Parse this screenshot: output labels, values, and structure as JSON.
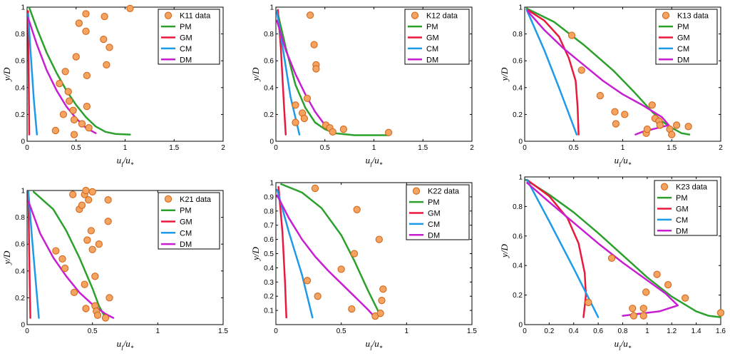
{
  "figure": {
    "title": "Velocity profiles u_l/u_* vs y/D for six data sets"
  },
  "colors": {
    "data": "#F4A460",
    "dataEdge": "#D2691E",
    "PM": "#2CA02C",
    "GM": "#E8193C",
    "CM": "#1E9BE8",
    "DM": "#C81ED2"
  },
  "chart_data": [
    {
      "id": "K11",
      "type": "scatter+line",
      "xlabel": "u_l/u_*",
      "ylabel": "y/D",
      "xlim": [
        0,
        2
      ],
      "ylim": [
        0,
        1
      ],
      "xticks": [
        0,
        0.5,
        1,
        1.5,
        2
      ],
      "xtick_labels": [
        "0",
        "0.5",
        "1",
        "1.5",
        "2"
      ],
      "yticks": [
        0,
        0.2,
        0.4,
        0.6,
        0.8,
        1
      ],
      "ytick_labels": [
        "0",
        "0.2",
        "0.4",
        "0.6",
        "0.8",
        "1"
      ],
      "legend": [
        "K11 data",
        "PM",
        "GM",
        "CM",
        "DM"
      ],
      "points": [
        [
          0.29,
          0.08
        ],
        [
          0.33,
          0.43
        ],
        [
          0.37,
          0.2
        ],
        [
          0.39,
          0.52
        ],
        [
          0.42,
          0.37
        ],
        [
          0.43,
          0.3
        ],
        [
          0.47,
          0.23
        ],
        [
          0.48,
          0.16
        ],
        [
          0.48,
          0.05
        ],
        [
          0.5,
          0.63
        ],
        [
          0.53,
          0.88
        ],
        [
          0.56,
          0.13
        ],
        [
          0.6,
          0.82
        ],
        [
          0.6,
          0.95
        ],
        [
          0.61,
          0.26
        ],
        [
          0.61,
          0.49
        ],
        [
          0.63,
          0.1
        ],
        [
          0.78,
          0.76
        ],
        [
          0.79,
          0.93
        ],
        [
          0.81,
          0.57
        ],
        [
          0.84,
          0.7
        ],
        [
          1.05,
          0.99
        ]
      ],
      "series": [
        {
          "name": "PM",
          "x": [
            0.02,
            0.1,
            0.2,
            0.3,
            0.4,
            0.5,
            0.6,
            0.7,
            0.8,
            0.9,
            1.05
          ],
          "y": [
            1,
            0.84,
            0.66,
            0.51,
            0.38,
            0.27,
            0.18,
            0.11,
            0.07,
            0.055,
            0.05
          ]
        },
        {
          "name": "GM",
          "x": [
            0.01,
            0.016,
            0.02,
            0.022
          ],
          "y": [
            0.97,
            0.5,
            0.2,
            0.05
          ]
        },
        {
          "name": "CM",
          "x": [
            0.01,
            0.04,
            0.07,
            0.1
          ],
          "y": [
            0.95,
            0.62,
            0.3,
            0.05
          ]
        },
        {
          "name": "DM",
          "x": [
            0.01,
            0.1,
            0.2,
            0.3,
            0.4,
            0.5,
            0.6,
            0.7
          ],
          "y": [
            0.92,
            0.72,
            0.53,
            0.38,
            0.26,
            0.17,
            0.1,
            0.06
          ]
        }
      ]
    },
    {
      "id": "K12",
      "type": "scatter+line",
      "xlabel": "u_l/u_*",
      "ylabel": "y/D",
      "xlim": [
        0,
        2
      ],
      "ylim": [
        0,
        1
      ],
      "xticks": [
        0,
        0.5,
        1,
        1.5,
        2
      ],
      "xtick_labels": [
        "0",
        "0.5",
        "1",
        "1.5",
        "2"
      ],
      "yticks": [
        0,
        0.2,
        0.4,
        0.6,
        0.8,
        1
      ],
      "ytick_labels": [
        "0",
        "0.2",
        "0.4",
        "0.6",
        "0.8",
        "1"
      ],
      "legend": [
        "K12 data",
        "PM",
        "GM",
        "CM",
        "DM"
      ],
      "points": [
        [
          0.2,
          0.27
        ],
        [
          0.2,
          0.14
        ],
        [
          0.27,
          0.21
        ],
        [
          0.29,
          0.17
        ],
        [
          0.32,
          0.32
        ],
        [
          0.35,
          0.94
        ],
        [
          0.39,
          0.72
        ],
        [
          0.41,
          0.57
        ],
        [
          0.41,
          0.54
        ],
        [
          0.51,
          0.12
        ],
        [
          0.55,
          0.1
        ],
        [
          0.58,
          0.07
        ],
        [
          0.69,
          0.09
        ],
        [
          1.15,
          0.065
        ]
      ],
      "series": [
        {
          "name": "PM",
          "x": [
            0.02,
            0.1,
            0.2,
            0.3,
            0.4,
            0.5,
            0.6,
            0.8,
            1.0,
            1.15
          ],
          "y": [
            0.95,
            0.7,
            0.42,
            0.25,
            0.14,
            0.09,
            0.06,
            0.045,
            0.045,
            0.045
          ]
        },
        {
          "name": "GM",
          "x": [
            0.02,
            0.05,
            0.08,
            0.1
          ],
          "y": [
            0.98,
            0.7,
            0.3,
            0.05
          ]
        },
        {
          "name": "CM",
          "x": [
            0.01,
            0.08,
            0.15,
            0.24
          ],
          "y": [
            0.97,
            0.65,
            0.33,
            0.05
          ]
        },
        {
          "name": "DM",
          "x": [
            0.01,
            0.1,
            0.2,
            0.3,
            0.4,
            0.5,
            0.6
          ],
          "y": [
            0.9,
            0.68,
            0.5,
            0.35,
            0.22,
            0.12,
            0.06
          ]
        }
      ]
    },
    {
      "id": "K13",
      "type": "scatter+line",
      "xlabel": "u_l/u_*",
      "ylabel": "y/D",
      "xlim": [
        0,
        2
      ],
      "ylim": [
        0,
        1
      ],
      "xticks": [
        0,
        0.5,
        1,
        1.5,
        2
      ],
      "xtick_labels": [
        "0",
        "0.5",
        "1",
        "1.5",
        "2"
      ],
      "yticks": [
        0,
        0.2,
        0.4,
        0.6,
        0.8,
        1
      ],
      "ytick_labels": [
        "0",
        "0.2",
        "0.4",
        "0.6",
        "0.8",
        "1"
      ],
      "legend": [
        "K13 data",
        "PM",
        "GM",
        "CM",
        "DM"
      ],
      "points": [
        [
          0.48,
          0.79
        ],
        [
          0.58,
          0.53
        ],
        [
          0.77,
          0.34
        ],
        [
          0.92,
          0.22
        ],
        [
          0.93,
          0.13
        ],
        [
          1.02,
          0.2
        ],
        [
          1.24,
          0.06
        ],
        [
          1.25,
          0.09
        ],
        [
          1.3,
          0.27
        ],
        [
          1.33,
          0.17
        ],
        [
          1.37,
          0.15
        ],
        [
          1.38,
          0.12
        ],
        [
          1.48,
          0.09
        ],
        [
          1.5,
          0.05
        ],
        [
          1.55,
          0.12
        ],
        [
          1.67,
          0.11
        ]
      ],
      "series": [
        {
          "name": "PM",
          "x": [
            0.02,
            0.3,
            0.6,
            0.9,
            1.1,
            1.3,
            1.4,
            1.5,
            1.6,
            1.68
          ],
          "y": [
            0.99,
            0.89,
            0.72,
            0.53,
            0.38,
            0.22,
            0.15,
            0.1,
            0.06,
            0.05
          ]
        },
        {
          "name": "GM",
          "x": [
            0.03,
            0.2,
            0.35,
            0.45,
            0.52,
            0.54,
            0.55
          ],
          "y": [
            0.98,
            0.9,
            0.78,
            0.62,
            0.45,
            0.25,
            0.05
          ]
        },
        {
          "name": "CM",
          "x": [
            0.02,
            0.2,
            0.35,
            0.53
          ],
          "y": [
            0.98,
            0.68,
            0.4,
            0.05
          ]
        },
        {
          "name": "DM",
          "x": [
            0.03,
            0.2,
            0.4,
            0.6,
            0.8,
            1.0,
            1.2,
            1.4,
            1.47,
            1.2,
            1.13
          ],
          "y": [
            0.97,
            0.83,
            0.69,
            0.57,
            0.45,
            0.35,
            0.27,
            0.18,
            0.12,
            0.07,
            0.05
          ]
        }
      ]
    },
    {
      "id": "K21",
      "type": "scatter+line",
      "xlabel": "u_l/u_*",
      "ylabel": "y/D",
      "xlim": [
        0,
        1.5
      ],
      "ylim": [
        0,
        1
      ],
      "xticks": [
        0,
        0.5,
        1,
        1.5
      ],
      "xtick_labels": [
        "0",
        "0.5",
        "1",
        "1.5"
      ],
      "yticks": [
        0,
        0.2,
        0.4,
        0.6,
        0.8,
        1
      ],
      "ytick_labels": [
        "0",
        "0.2",
        "0.4",
        "0.6",
        "0.8",
        "1"
      ],
      "legend": [
        "K21 data",
        "PM",
        "GM",
        "CM",
        "DM"
      ],
      "points": [
        [
          0.22,
          0.55
        ],
        [
          0.27,
          0.49
        ],
        [
          0.29,
          0.42
        ],
        [
          0.35,
          0.97
        ],
        [
          0.36,
          0.24
        ],
        [
          0.4,
          0.86
        ],
        [
          0.42,
          0.89
        ],
        [
          0.44,
          0.97
        ],
        [
          0.44,
          0.3
        ],
        [
          0.45,
          0.12
        ],
        [
          0.45,
          1.0
        ],
        [
          0.46,
          0.63
        ],
        [
          0.47,
          0.93
        ],
        [
          0.49,
          0.7
        ],
        [
          0.5,
          0.99
        ],
        [
          0.5,
          0.56
        ],
        [
          0.52,
          0.36
        ],
        [
          0.52,
          0.14
        ],
        [
          0.53,
          0.1
        ],
        [
          0.54,
          0.07
        ],
        [
          0.55,
          0.6
        ],
        [
          0.6,
          0.05
        ],
        [
          0.62,
          0.93
        ],
        [
          0.62,
          0.77
        ],
        [
          0.63,
          0.2
        ]
      ],
      "series": [
        {
          "name": "PM",
          "x": [
            0.05,
            0.2,
            0.3,
            0.4,
            0.5,
            0.55,
            0.6
          ],
          "y": [
            0.99,
            0.86,
            0.7,
            0.5,
            0.27,
            0.14,
            0.05
          ]
        },
        {
          "name": "GM",
          "x": [
            0.01,
            0.015,
            0.02,
            0.025
          ],
          "y": [
            0.99,
            0.6,
            0.3,
            0.05
          ]
        },
        {
          "name": "CM",
          "x": [
            0.01,
            0.04,
            0.07,
            0.09
          ],
          "y": [
            0.99,
            0.62,
            0.28,
            0.05
          ]
        },
        {
          "name": "DM",
          "x": [
            0.01,
            0.1,
            0.2,
            0.3,
            0.4,
            0.5,
            0.6,
            0.66
          ],
          "y": [
            0.92,
            0.68,
            0.5,
            0.36,
            0.24,
            0.15,
            0.08,
            0.05
          ]
        }
      ]
    },
    {
      "id": "K22",
      "type": "scatter+line",
      "xlabel": "u_l/u_*",
      "ylabel": "y/D",
      "xlim": [
        0,
        1.5
      ],
      "ylim": [
        0,
        1
      ],
      "xticks": [
        0,
        0.5,
        1,
        1.5
      ],
      "xtick_labels": [
        "0",
        "0.5",
        "1",
        "1.5"
      ],
      "yticks": [
        0.1,
        0.2,
        0.3,
        0.4,
        0.5,
        0.6,
        0.7,
        0.8,
        0.9,
        1
      ],
      "ytick_labels": [
        "0.1",
        "0.2",
        "0.3",
        "0.4",
        "0.5",
        "0.6",
        "0.7",
        "0.8",
        "0.9",
        "1"
      ],
      "legend": [
        "K22 data",
        "PM",
        "GM",
        "CM",
        "DM"
      ],
      "points": [
        [
          0.24,
          0.31
        ],
        [
          0.3,
          0.96
        ],
        [
          0.32,
          0.2
        ],
        [
          0.5,
          0.39
        ],
        [
          0.58,
          0.11
        ],
        [
          0.6,
          0.5
        ],
        [
          0.62,
          0.81
        ],
        [
          0.76,
          0.06
        ],
        [
          0.79,
          0.6
        ],
        [
          0.8,
          0.08
        ],
        [
          0.81,
          0.17
        ],
        [
          0.82,
          0.25
        ]
      ],
      "series": [
        {
          "name": "PM",
          "x": [
            0.04,
            0.2,
            0.35,
            0.5,
            0.6,
            0.7,
            0.78,
            0.8
          ],
          "y": [
            0.99,
            0.93,
            0.82,
            0.63,
            0.45,
            0.25,
            0.1,
            0.06
          ]
        },
        {
          "name": "GM",
          "x": [
            0.02,
            0.05,
            0.07,
            0.08
          ],
          "y": [
            0.97,
            0.65,
            0.3,
            0.05
          ]
        },
        {
          "name": "CM",
          "x": [
            0.01,
            0.1,
            0.2,
            0.28
          ],
          "y": [
            0.95,
            0.65,
            0.35,
            0.05
          ]
        },
        {
          "name": "DM",
          "x": [
            0.01,
            0.1,
            0.2,
            0.3,
            0.4,
            0.5,
            0.6,
            0.7,
            0.75
          ],
          "y": [
            0.91,
            0.75,
            0.6,
            0.48,
            0.38,
            0.29,
            0.2,
            0.11,
            0.06
          ]
        }
      ]
    },
    {
      "id": "K23",
      "type": "scatter+line",
      "xlabel": "u_l/u_*",
      "ylabel": "y/D",
      "xlim": [
        0,
        1.6
      ],
      "ylim": [
        0,
        1
      ],
      "xticks": [
        0,
        0.2,
        0.4,
        0.6,
        0.8,
        1,
        1.2,
        1.4,
        1.6
      ],
      "xtick_labels": [
        "0",
        "0.2",
        "0.4",
        "0.6",
        "0.8",
        "1",
        "1.2",
        "1.4",
        "1.6"
      ],
      "yticks": [
        0,
        0.2,
        0.4,
        0.6,
        0.8,
        1
      ],
      "ytick_labels": [
        "0",
        "0.2",
        "0.4",
        "0.6",
        "0.8",
        "1"
      ],
      "legend": [
        "K23 data",
        "PM",
        "GM",
        "CM",
        "DM"
      ],
      "points": [
        [
          0.52,
          0.15
        ],
        [
          0.71,
          0.45
        ],
        [
          0.88,
          0.11
        ],
        [
          0.89,
          0.06
        ],
        [
          0.97,
          0.11
        ],
        [
          0.97,
          0.06
        ],
        [
          0.99,
          0.22
        ],
        [
          1.08,
          0.34
        ],
        [
          1.17,
          0.27
        ],
        [
          1.31,
          0.18
        ],
        [
          1.6,
          0.08
        ]
      ],
      "series": [
        {
          "name": "PM",
          "x": [
            0.01,
            0.2,
            0.4,
            0.6,
            0.8,
            1.0,
            1.2,
            1.4,
            1.5,
            1.6
          ],
          "y": [
            0.98,
            0.88,
            0.76,
            0.62,
            0.47,
            0.32,
            0.19,
            0.09,
            0.06,
            0.05
          ]
        },
        {
          "name": "GM",
          "x": [
            0.02,
            0.2,
            0.35,
            0.44,
            0.49,
            0.5,
            0.48
          ],
          "y": [
            0.98,
            0.87,
            0.72,
            0.55,
            0.35,
            0.2,
            0.05
          ]
        },
        {
          "name": "CM",
          "x": [
            0.02,
            0.2,
            0.4,
            0.6
          ],
          "y": [
            0.98,
            0.7,
            0.38,
            0.05
          ]
        },
        {
          "name": "DM",
          "x": [
            0.02,
            0.2,
            0.4,
            0.6,
            0.8,
            1.0,
            1.15,
            1.25,
            1.1,
            0.9,
            0.8
          ],
          "y": [
            0.96,
            0.83,
            0.69,
            0.55,
            0.42,
            0.3,
            0.21,
            0.13,
            0.09,
            0.07,
            0.06
          ]
        }
      ]
    }
  ]
}
